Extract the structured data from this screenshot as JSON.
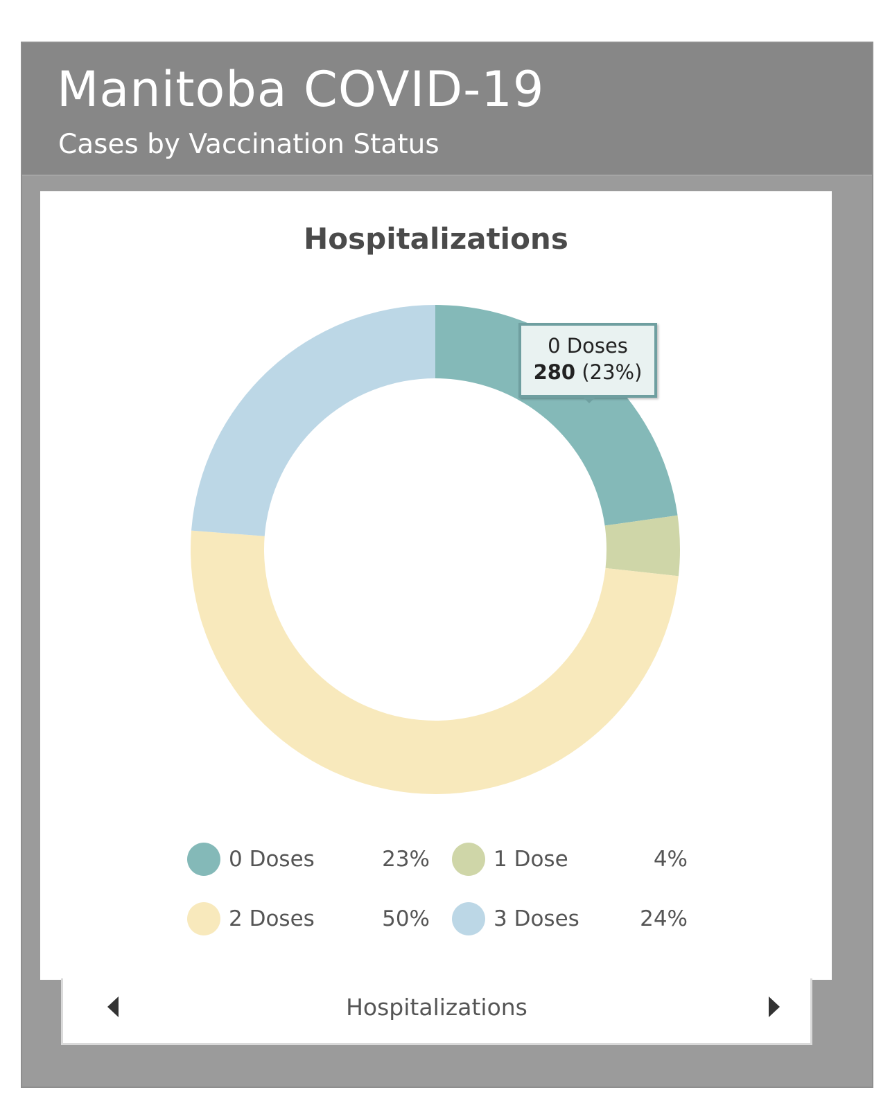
{
  "header": {
    "title": "Manitoba COVID-19",
    "subtitle": "Cases by Vaccination Status"
  },
  "chart_data": {
    "type": "pie",
    "style": "donut",
    "title": "Hospitalizations",
    "categories": [
      "0 Doses",
      "1 Dose",
      "2 Doses",
      "3 Doses"
    ],
    "percent_labels": [
      "23%",
      "4%",
      "50%",
      "24%"
    ],
    "values": [
      23,
      4,
      50,
      24
    ],
    "colors": [
      "#84b9b8",
      "#cfd6a8",
      "#f8e9bc",
      "#bcd7e6"
    ],
    "legend_position": "bottom"
  },
  "tooltip": {
    "label": "0 Doses",
    "value": "280",
    "percent": "(23%)"
  },
  "footer": {
    "label": "Hospitalizations",
    "prev_icon": "triangle-left-icon",
    "next_icon": "triangle-right-icon"
  }
}
